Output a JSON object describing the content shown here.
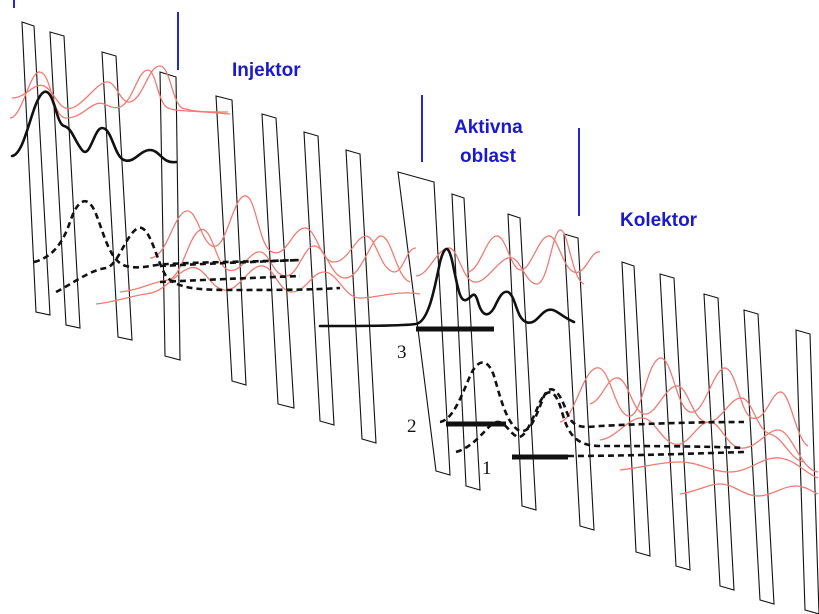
{
  "regions": {
    "injector": "Injektor",
    "active_line1": "Aktivna",
    "active_line2": "oblast",
    "collector": "Kolektor"
  },
  "states": {
    "s1": "1",
    "s2": "2",
    "s3": "3"
  },
  "colors": {
    "label": "#1a1acc",
    "red_wavefunctions": "#f07b73",
    "black": "#111111"
  }
}
